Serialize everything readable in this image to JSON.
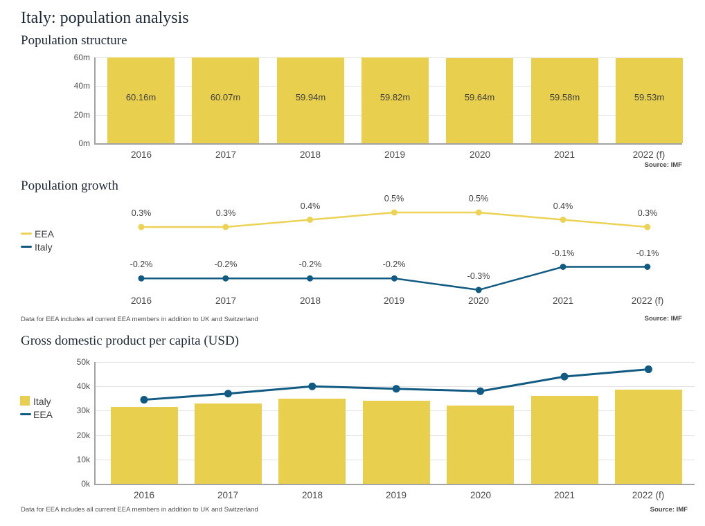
{
  "page": {
    "title": "Italy: population analysis"
  },
  "colors": {
    "bar_yellow": "#e8cf4d",
    "line_yellow": "#ecd356",
    "navy": "#115a82",
    "title_text": "#1d2a36",
    "grid": "#e2e2e2",
    "axis": "#a3a3a3",
    "value_label": "#3f3f3f",
    "tick_label": "#4f4f4f",
    "category_label": "#4a4a4a"
  },
  "chart_data": [
    {
      "id": "population-structure",
      "type": "bar",
      "title": "Population structure",
      "categories": [
        "2016",
        "2017",
        "2018",
        "2019",
        "2020",
        "2021",
        "2022 (f)"
      ],
      "values": [
        60.16,
        60.07,
        59.94,
        59.82,
        59.64,
        59.58,
        59.53
      ],
      "value_labels": [
        "60.16m",
        "60.07m",
        "59.94m",
        "59.82m",
        "59.64m",
        "59.58m",
        "59.53m"
      ],
      "ylim": [
        0,
        60
      ],
      "y_ticks": [
        {
          "value": 60,
          "label": "60m"
        },
        {
          "value": 40,
          "label": "40m"
        },
        {
          "value": 20,
          "label": "20m"
        },
        {
          "value": 0,
          "label": "0m"
        }
      ],
      "grid": true,
      "legend_position": "none",
      "source": "Source: IMF"
    },
    {
      "id": "population-growth",
      "type": "line",
      "title": "Population growth",
      "categories": [
        "2016",
        "2017",
        "2018",
        "2019",
        "2020",
        "2021",
        "2022 (f)"
      ],
      "series": [
        {
          "name": "EEA",
          "color": "#ecd356",
          "values": [
            0.3,
            0.3,
            0.4,
            0.5,
            0.5,
            0.4,
            0.3
          ],
          "point_labels": [
            "0.3%",
            "0.3%",
            "0.4%",
            "0.5%",
            "0.5%",
            "0.4%",
            "0.3%"
          ]
        },
        {
          "name": "Italy",
          "color": "#115a82",
          "values": [
            -0.2,
            -0.2,
            -0.2,
            -0.2,
            -0.3,
            -0.1,
            -0.1
          ],
          "point_labels": [
            "-0.2%",
            "-0.2%",
            "-0.2%",
            "-0.2%",
            "-0.3%",
            "-0.1%",
            "-0.1%"
          ]
        }
      ],
      "grid": false,
      "legend_position": "left",
      "footnote": "Data for EEA includes all current EEA members in addition to UK and Switzerland",
      "source": "Source: IMF"
    },
    {
      "id": "gdp-per-capita",
      "type": "bar+line",
      "title": "Gross domestic product per capita (USD)",
      "categories": [
        "2016",
        "2017",
        "2018",
        "2019",
        "2020",
        "2021",
        "2022 (f)"
      ],
      "series": [
        {
          "name": "Italy",
          "type": "bar",
          "color": "#e8cf4d",
          "values": [
            31500,
            33000,
            35000,
            34000,
            32000,
            36000,
            38500
          ]
        },
        {
          "name": "EEA",
          "type": "line",
          "color": "#115a82",
          "values": [
            34500,
            37000,
            40000,
            39000,
            38000,
            44000,
            47000
          ]
        }
      ],
      "ylim": [
        0,
        50000
      ],
      "y_ticks": [
        {
          "value": 50000,
          "label": "50k"
        },
        {
          "value": 40000,
          "label": "40k"
        },
        {
          "value": 30000,
          "label": "30k"
        },
        {
          "value": 20000,
          "label": "20k"
        },
        {
          "value": 10000,
          "label": "10k"
        },
        {
          "value": 0,
          "label": "0k"
        }
      ],
      "grid": true,
      "legend_position": "left",
      "footnote": "Data for EEA includes all current EEA members in addition to UK and Switzerland",
      "source": "Source: IMF"
    }
  ]
}
